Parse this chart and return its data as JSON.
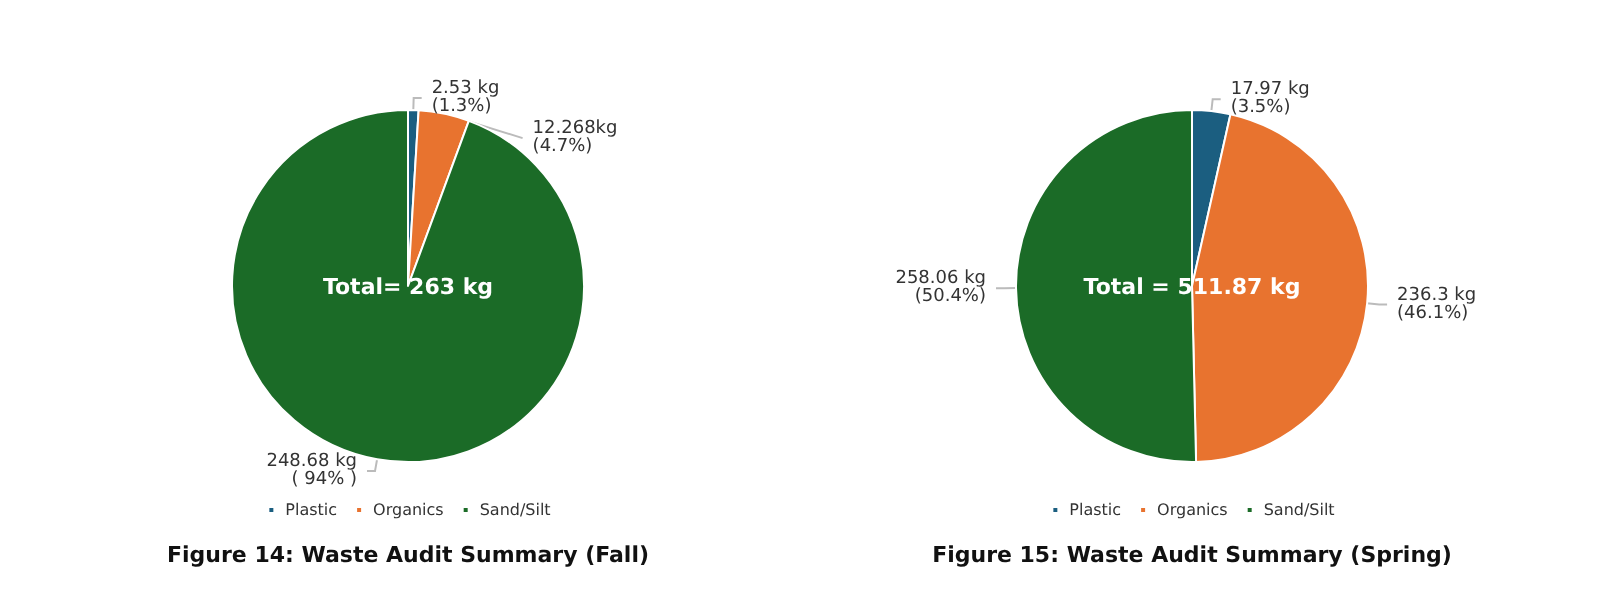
{
  "chart_data": [
    {
      "type": "pie",
      "title": "Figure 14: Waste Audit Summary (Fall)",
      "categories": [
        "Plastic",
        "Organics",
        "Sand/Silt"
      ],
      "values": [
        2.53,
        12.268,
        248.68
      ],
      "colors": [
        "#1b5e80",
        "#e8732f",
        "#1b6b27"
      ],
      "value_labels": [
        "2.53 kg\n(1.3%)",
        "12.268kg\n(4.7%)",
        "248.68 kg\n( 94% )"
      ],
      "annotations": [
        "Total= 263 kg"
      ],
      "legend": "bottom"
    },
    {
      "type": "pie",
      "title": "Figure 15: Waste Audit Summary (Spring)",
      "categories": [
        "Plastic",
        "Organics",
        "Sand/Silt"
      ],
      "values": [
        17.97,
        236.3,
        258.06
      ],
      "colors": [
        "#1b5e80",
        "#e8732f",
        "#1b6b27"
      ],
      "value_labels": [
        "17.97 kg\n(3.5%)",
        "236.3 kg\n(46.1%)",
        "258.06 kg\n(50.4%)"
      ],
      "annotations": [
        "Total = 511.87 kg"
      ],
      "legend": "bottom"
    }
  ]
}
